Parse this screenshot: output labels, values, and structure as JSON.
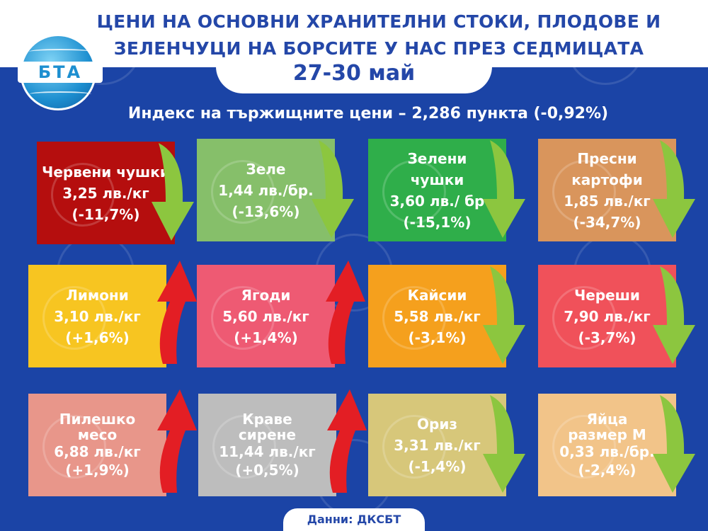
{
  "header": {
    "title_line1": "ЦЕНИ НА ОСНОВНИ ХРАНИТЕЛНИ СТОКИ, ПЛОДОВЕ И",
    "title_line2": "ЗЕЛЕНЧУЦИ НА БОРСИТЕ У НАС ПРЕЗ СЕДМИЦАТА",
    "date": "27-30 май",
    "logo_text": "БТА"
  },
  "subtitle": "Индекс на тържищните цени – 2,286 пункта (-0,92%)",
  "colors": {
    "background": "#1b44a6",
    "title": "#2447a8",
    "down_arrow": "#8cc63f",
    "up_arrow": "#e31e24"
  },
  "cards": [
    {
      "name": "Червени чушки",
      "price": "3,25 лв./кг",
      "change": "(-11,7%)",
      "color": "#b50e0e",
      "trend": "down"
    },
    {
      "name": "Зеле",
      "price": "1,44 лв./бр.",
      "change": "(-13,6%)",
      "color": "#86bf6a",
      "trend": "down"
    },
    {
      "name": "Зелени чушки",
      "price": "3,60 лв./ бр",
      "change": "(-15,1%)",
      "color": "#2fae4a",
      "trend": "down"
    },
    {
      "name": "Пресни картофи",
      "price": "1,85 лв./кг",
      "change": "(-34,7%)",
      "color": "#d9955c",
      "trend": "down"
    },
    {
      "name": "Лимони",
      "price": "3,10 лв./кг",
      "change": "(+1,6%)",
      "color": "#f7c521",
      "trend": "up"
    },
    {
      "name": "Ягоди",
      "price": "5,60 лв./кг",
      "change": "(+1,4%)",
      "color": "#ee5a73",
      "trend": "up"
    },
    {
      "name": "Кайсии",
      "price": "5,58 лв./кг",
      "change": "(-3,1%)",
      "color": "#f5a01d",
      "trend": "down"
    },
    {
      "name": "Череши",
      "price": "7,90 лв./кг",
      "change": "(-3,7%)",
      "color": "#f0515a",
      "trend": "down"
    },
    {
      "name": "Пилешко месо",
      "price": "6,88 лв./кг",
      "change": "(+1,9%)",
      "color": "#e8968a",
      "trend": "up"
    },
    {
      "name": "Краве сирене",
      "price": "11,44 лв./кг",
      "change": "(+0,5%)",
      "color": "#bdbdbd",
      "trend": "up"
    },
    {
      "name": "Ориз",
      "price": "3,31 лв./кг",
      "change": "(-1,4%)",
      "color": "#d7c77a",
      "trend": "down"
    },
    {
      "name": "Яйца размер М",
      "price": "0,33 лв./бр.",
      "change": "(-2,4%)",
      "color": "#f2c489",
      "trend": "down"
    }
  ],
  "footer": "Данни: ДКСБТ"
}
